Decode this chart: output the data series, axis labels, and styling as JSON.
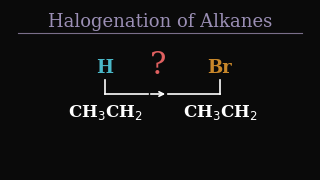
{
  "title": "Halogenation of Alkanes",
  "title_color": "#9b8fb5",
  "title_underline_color": "#7a6f8a",
  "background_color": "#0a0a0a",
  "H_label": "H",
  "H_color": "#4ab8c8",
  "Br_label": "Br",
  "Br_color": "#c8872a",
  "question_mark": "?",
  "question_color": "#e06060",
  "arrow_color": "#ffffff",
  "formula_color": "#ffffff",
  "line_color": "#ffffff",
  "figsize": [
    3.2,
    1.8
  ],
  "dpi": 100
}
